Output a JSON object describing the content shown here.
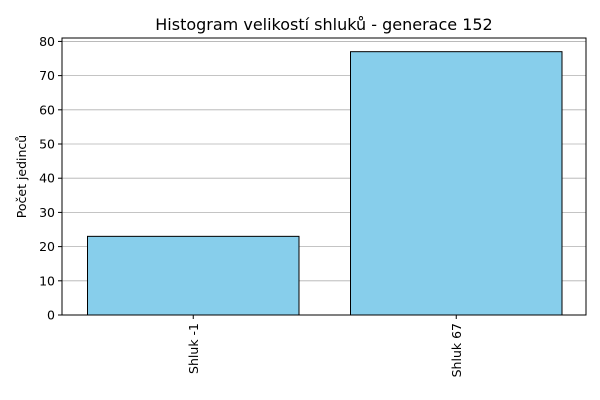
{
  "chart_data": {
    "type": "bar",
    "title": "Histogram velikostí shluků - generace 152",
    "xlabel": "",
    "ylabel": "Počet jedinců",
    "categories": [
      "Shluk -1",
      "Shluk 67"
    ],
    "values": [
      23,
      77
    ],
    "ylim": [
      0,
      81
    ],
    "yticks": [
      0,
      10,
      20,
      30,
      40,
      50,
      60,
      70,
      80
    ],
    "grid": "y",
    "bar_color": "#87CEEB",
    "edge_color": "#000000",
    "grid_color": "#b0b0b0"
  }
}
